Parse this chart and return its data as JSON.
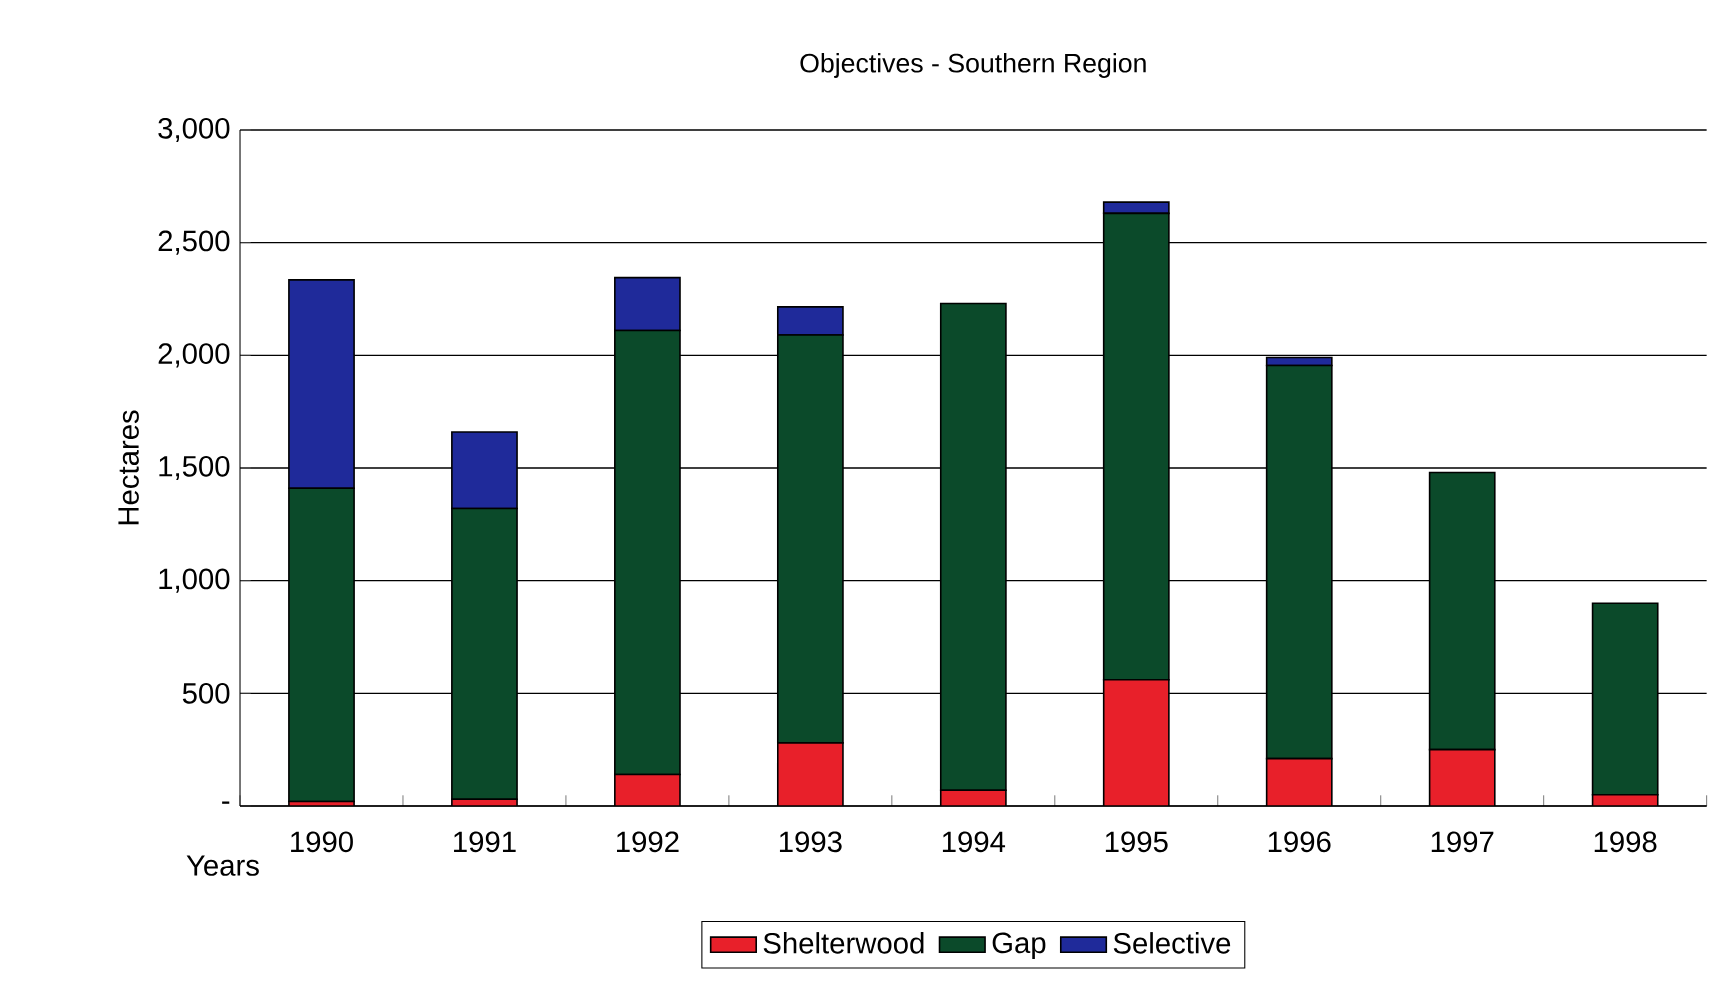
{
  "chart_data": {
    "type": "bar",
    "title": "Objectives - Southern Region",
    "xlabel": "Years",
    "ylabel": "Hectares",
    "categories": [
      "1990",
      "1991",
      "1992",
      "1993",
      "1994",
      "1995",
      "1996",
      "1997",
      "1998"
    ],
    "stacked": true,
    "series": [
      {
        "name": "Shelterwood",
        "color": "#e8202a",
        "values": [
          20,
          30,
          140,
          280,
          70,
          560,
          210,
          250,
          50
        ]
      },
      {
        "name": "Gap",
        "color": "#0b4a2a",
        "values": [
          1390,
          1290,
          1970,
          1810,
          2160,
          2070,
          1745,
          1230,
          850
        ]
      },
      {
        "name": "Selective",
        "color": "#1f2a9a",
        "values": [
          925,
          340,
          235,
          125,
          0,
          50,
          35,
          0,
          0
        ]
      }
    ],
    "ylim": [
      0,
      3000
    ],
    "yticks": [
      {
        "value": 0,
        "label": "-"
      },
      {
        "value": 500,
        "label": "500"
      },
      {
        "value": 1000,
        "label": "1,000"
      },
      {
        "value": 1500,
        "label": "1,500"
      },
      {
        "value": 2000,
        "label": "2,000"
      },
      {
        "value": 2500,
        "label": "2,500"
      },
      {
        "value": 3000,
        "label": "3,000"
      }
    ],
    "grid": "y",
    "legend": "bottom"
  }
}
